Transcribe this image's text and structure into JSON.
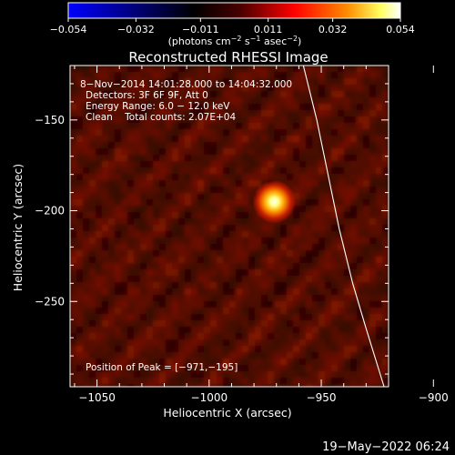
{
  "colorbar": {
    "ticks": [
      "−0.054",
      "−0.032",
      "−0.011",
      "0.011",
      "0.032",
      "0.054"
    ],
    "tick_values": [
      -0.054,
      -0.032,
      -0.011,
      0.011,
      0.032,
      0.054
    ],
    "range": [
      -0.054,
      0.054
    ],
    "units_prefix": "(photons cm",
    "units_sup1": "−2",
    "units_mid": " s",
    "units_sup2": "−1",
    "units_mid2": " asec",
    "units_sup3": "−2",
    "units_suffix": ")",
    "colors": [
      "#0000ff",
      "#000000",
      "#ff0000",
      "#ffa500",
      "#ffff80",
      "#ffffff"
    ]
  },
  "chart_data": {
    "type": "heatmap",
    "title": "Reconstructed RHESSI Image",
    "xlabel": "Heliocentric X (arcsec)",
    "ylabel": "Heliocentric Y (arcsec)",
    "xlim": [
      -1062,
      -920
    ],
    "ylim": [
      -297,
      -120
    ],
    "x_ticks": [
      -1050,
      -1000,
      -950,
      -900
    ],
    "x_tick_labels": [
      "−1050",
      "−1000",
      "−950",
      "−900"
    ],
    "y_ticks": [
      -150,
      -200,
      -250
    ],
    "y_tick_labels": [
      "−150",
      "−200",
      "−250"
    ],
    "peak": {
      "x": -971,
      "y": -195,
      "value": 0.054
    },
    "limb_points": [
      [
        -958,
        -120
      ],
      [
        -952,
        -150
      ],
      [
        -947,
        -180
      ],
      [
        -942,
        -210
      ],
      [
        -936,
        -240
      ],
      [
        -930,
        -265
      ],
      [
        -922,
        -297
      ]
    ],
    "annotations": [
      "8−Nov−2014 14:01:28.000 to 14:04:32.000",
      "Detectors: 3F 6F 9F, Att 0",
      "Energy Range: 6.0 − 12.0 keV",
      "Clean    Total counts: 2.07E+04",
      "Position of Peak = [−971,−195]"
    ]
  },
  "timestamp": "19−May−2022 06:24"
}
